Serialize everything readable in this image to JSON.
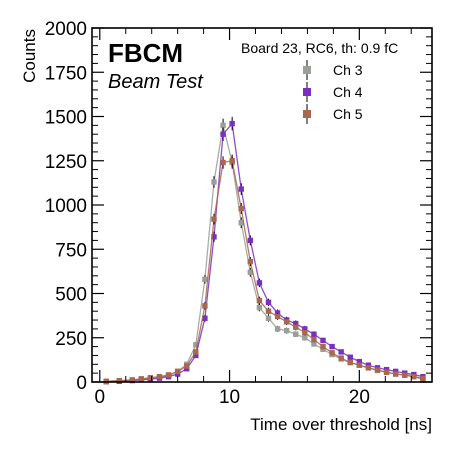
{
  "chart_data": {
    "type": "line",
    "annotation_title": "FBCM",
    "annotation_subtitle": "Beam Test",
    "legend_header": "Board 23, RC6, th: 0.9 fC",
    "legend_placement": "top-right",
    "xlabel": "Time over threshold [ns]",
    "ylabel": "Counts",
    "xlim": [
      -0.6,
      25.6
    ],
    "ylim": [
      0,
      2000
    ],
    "x_ticks": [
      0,
      10,
      20
    ],
    "y_ticks": [
      0,
      250,
      500,
      750,
      1000,
      1250,
      1500,
      1750,
      2000
    ],
    "x_tick_labels": [
      "0",
      "10",
      "20"
    ],
    "y_tick_labels": [
      "0",
      "250",
      "500",
      "750",
      "1000",
      "1250",
      "1500",
      "1750",
      "2000"
    ],
    "grid": false,
    "x": [
      0.5,
      1.5,
      2.5,
      3.2,
      3.9,
      4.6,
      5.3,
      6.0,
      6.7,
      7.4,
      8.1,
      8.8,
      9.5,
      10.2,
      10.9,
      11.6,
      12.3,
      13.0,
      13.7,
      14.4,
      15.1,
      15.8,
      16.5,
      17.2,
      17.9,
      18.6,
      19.3,
      20.0,
      20.7,
      21.4,
      22.1,
      22.8,
      23.5,
      24.2,
      24.9
    ],
    "series": [
      {
        "name": "Ch 3",
        "color": "#9a9f98",
        "values": [
          3,
          6,
          10,
          16,
          20,
          26,
          35,
          60,
          100,
          210,
          580,
          1130,
          1450,
          1240,
          900,
          620,
          420,
          360,
          300,
          290,
          270,
          250,
          215,
          185,
          155,
          130,
          110,
          95,
          80,
          65,
          55,
          45,
          40,
          35,
          10
        ],
        "errors": [
          3,
          3,
          4,
          5,
          5,
          6,
          7,
          8,
          10,
          15,
          24,
          33,
          38,
          35,
          30,
          25,
          21,
          19,
          17,
          17,
          16,
          16,
          15,
          14,
          12,
          11,
          10,
          10,
          9,
          8,
          8,
          7,
          6,
          6,
          4
        ]
      },
      {
        "name": "Ch 4",
        "color": "#7b2fbe",
        "values": [
          2,
          4,
          8,
          12,
          16,
          22,
          30,
          45,
          75,
          150,
          360,
          820,
          1400,
          1460,
          1090,
          800,
          560,
          450,
          390,
          350,
          330,
          300,
          270,
          235,
          200,
          170,
          140,
          115,
          95,
          80,
          70,
          60,
          50,
          42,
          30
        ],
        "errors": [
          2,
          3,
          4,
          5,
          5,
          6,
          6,
          7,
          9,
          12,
          19,
          29,
          38,
          38,
          33,
          28,
          24,
          21,
          20,
          19,
          18,
          17,
          16,
          15,
          14,
          13,
          12,
          11,
          10,
          9,
          8,
          8,
          7,
          7,
          6
        ]
      },
      {
        "name": "Ch 5",
        "color": "#a8674f",
        "values": [
          4,
          8,
          12,
          18,
          24,
          30,
          40,
          60,
          90,
          170,
          430,
          920,
          1240,
          1250,
          980,
          680,
          460,
          400,
          370,
          340,
          310,
          280,
          240,
          200,
          165,
          135,
          110,
          95,
          80,
          68,
          55,
          45,
          38,
          30,
          20
        ],
        "errors": [
          3,
          3,
          4,
          5,
          5,
          6,
          7,
          8,
          10,
          13,
          21,
          30,
          35,
          35,
          31,
          26,
          22,
          20,
          19,
          18,
          18,
          17,
          16,
          14,
          13,
          12,
          11,
          10,
          9,
          8,
          8,
          7,
          6,
          6,
          5
        ]
      }
    ]
  }
}
